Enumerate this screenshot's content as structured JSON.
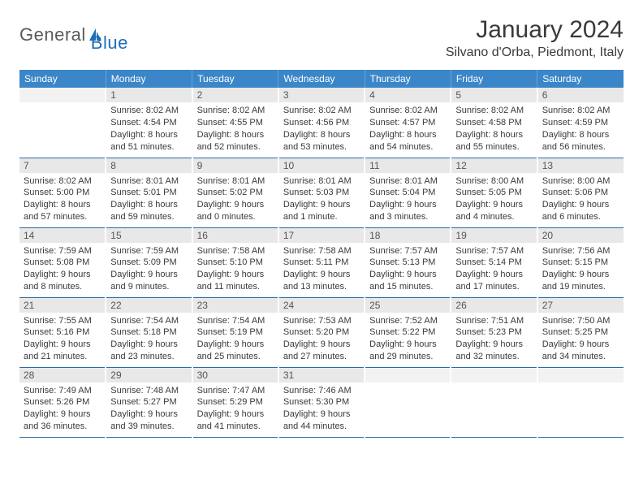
{
  "brand": {
    "general": "General",
    "blue": "Blue"
  },
  "title": "January 2024",
  "location": "Silvano d'Orba, Piedmont, Italy",
  "colors": {
    "header_bg": "#3a86c8",
    "header_text": "#ffffff",
    "daynum_bg": "#e8e8e8",
    "row_border": "#2a6ca8",
    "logo_blue": "#1d6fb8",
    "text": "#3a3a3a"
  },
  "days_of_week": [
    "Sunday",
    "Monday",
    "Tuesday",
    "Wednesday",
    "Thursday",
    "Friday",
    "Saturday"
  ],
  "weeks": [
    [
      null,
      {
        "n": "1",
        "sunrise": "Sunrise: 8:02 AM",
        "sunset": "Sunset: 4:54 PM",
        "daylight1": "Daylight: 8 hours",
        "daylight2": "and 51 minutes."
      },
      {
        "n": "2",
        "sunrise": "Sunrise: 8:02 AM",
        "sunset": "Sunset: 4:55 PM",
        "daylight1": "Daylight: 8 hours",
        "daylight2": "and 52 minutes."
      },
      {
        "n": "3",
        "sunrise": "Sunrise: 8:02 AM",
        "sunset": "Sunset: 4:56 PM",
        "daylight1": "Daylight: 8 hours",
        "daylight2": "and 53 minutes."
      },
      {
        "n": "4",
        "sunrise": "Sunrise: 8:02 AM",
        "sunset": "Sunset: 4:57 PM",
        "daylight1": "Daylight: 8 hours",
        "daylight2": "and 54 minutes."
      },
      {
        "n": "5",
        "sunrise": "Sunrise: 8:02 AM",
        "sunset": "Sunset: 4:58 PM",
        "daylight1": "Daylight: 8 hours",
        "daylight2": "and 55 minutes."
      },
      {
        "n": "6",
        "sunrise": "Sunrise: 8:02 AM",
        "sunset": "Sunset: 4:59 PM",
        "daylight1": "Daylight: 8 hours",
        "daylight2": "and 56 minutes."
      }
    ],
    [
      {
        "n": "7",
        "sunrise": "Sunrise: 8:02 AM",
        "sunset": "Sunset: 5:00 PM",
        "daylight1": "Daylight: 8 hours",
        "daylight2": "and 57 minutes."
      },
      {
        "n": "8",
        "sunrise": "Sunrise: 8:01 AM",
        "sunset": "Sunset: 5:01 PM",
        "daylight1": "Daylight: 8 hours",
        "daylight2": "and 59 minutes."
      },
      {
        "n": "9",
        "sunrise": "Sunrise: 8:01 AM",
        "sunset": "Sunset: 5:02 PM",
        "daylight1": "Daylight: 9 hours",
        "daylight2": "and 0 minutes."
      },
      {
        "n": "10",
        "sunrise": "Sunrise: 8:01 AM",
        "sunset": "Sunset: 5:03 PM",
        "daylight1": "Daylight: 9 hours",
        "daylight2": "and 1 minute."
      },
      {
        "n": "11",
        "sunrise": "Sunrise: 8:01 AM",
        "sunset": "Sunset: 5:04 PM",
        "daylight1": "Daylight: 9 hours",
        "daylight2": "and 3 minutes."
      },
      {
        "n": "12",
        "sunrise": "Sunrise: 8:00 AM",
        "sunset": "Sunset: 5:05 PM",
        "daylight1": "Daylight: 9 hours",
        "daylight2": "and 4 minutes."
      },
      {
        "n": "13",
        "sunrise": "Sunrise: 8:00 AM",
        "sunset": "Sunset: 5:06 PM",
        "daylight1": "Daylight: 9 hours",
        "daylight2": "and 6 minutes."
      }
    ],
    [
      {
        "n": "14",
        "sunrise": "Sunrise: 7:59 AM",
        "sunset": "Sunset: 5:08 PM",
        "daylight1": "Daylight: 9 hours",
        "daylight2": "and 8 minutes."
      },
      {
        "n": "15",
        "sunrise": "Sunrise: 7:59 AM",
        "sunset": "Sunset: 5:09 PM",
        "daylight1": "Daylight: 9 hours",
        "daylight2": "and 9 minutes."
      },
      {
        "n": "16",
        "sunrise": "Sunrise: 7:58 AM",
        "sunset": "Sunset: 5:10 PM",
        "daylight1": "Daylight: 9 hours",
        "daylight2": "and 11 minutes."
      },
      {
        "n": "17",
        "sunrise": "Sunrise: 7:58 AM",
        "sunset": "Sunset: 5:11 PM",
        "daylight1": "Daylight: 9 hours",
        "daylight2": "and 13 minutes."
      },
      {
        "n": "18",
        "sunrise": "Sunrise: 7:57 AM",
        "sunset": "Sunset: 5:13 PM",
        "daylight1": "Daylight: 9 hours",
        "daylight2": "and 15 minutes."
      },
      {
        "n": "19",
        "sunrise": "Sunrise: 7:57 AM",
        "sunset": "Sunset: 5:14 PM",
        "daylight1": "Daylight: 9 hours",
        "daylight2": "and 17 minutes."
      },
      {
        "n": "20",
        "sunrise": "Sunrise: 7:56 AM",
        "sunset": "Sunset: 5:15 PM",
        "daylight1": "Daylight: 9 hours",
        "daylight2": "and 19 minutes."
      }
    ],
    [
      {
        "n": "21",
        "sunrise": "Sunrise: 7:55 AM",
        "sunset": "Sunset: 5:16 PM",
        "daylight1": "Daylight: 9 hours",
        "daylight2": "and 21 minutes."
      },
      {
        "n": "22",
        "sunrise": "Sunrise: 7:54 AM",
        "sunset": "Sunset: 5:18 PM",
        "daylight1": "Daylight: 9 hours",
        "daylight2": "and 23 minutes."
      },
      {
        "n": "23",
        "sunrise": "Sunrise: 7:54 AM",
        "sunset": "Sunset: 5:19 PM",
        "daylight1": "Daylight: 9 hours",
        "daylight2": "and 25 minutes."
      },
      {
        "n": "24",
        "sunrise": "Sunrise: 7:53 AM",
        "sunset": "Sunset: 5:20 PM",
        "daylight1": "Daylight: 9 hours",
        "daylight2": "and 27 minutes."
      },
      {
        "n": "25",
        "sunrise": "Sunrise: 7:52 AM",
        "sunset": "Sunset: 5:22 PM",
        "daylight1": "Daylight: 9 hours",
        "daylight2": "and 29 minutes."
      },
      {
        "n": "26",
        "sunrise": "Sunrise: 7:51 AM",
        "sunset": "Sunset: 5:23 PM",
        "daylight1": "Daylight: 9 hours",
        "daylight2": "and 32 minutes."
      },
      {
        "n": "27",
        "sunrise": "Sunrise: 7:50 AM",
        "sunset": "Sunset: 5:25 PM",
        "daylight1": "Daylight: 9 hours",
        "daylight2": "and 34 minutes."
      }
    ],
    [
      {
        "n": "28",
        "sunrise": "Sunrise: 7:49 AM",
        "sunset": "Sunset: 5:26 PM",
        "daylight1": "Daylight: 9 hours",
        "daylight2": "and 36 minutes."
      },
      {
        "n": "29",
        "sunrise": "Sunrise: 7:48 AM",
        "sunset": "Sunset: 5:27 PM",
        "daylight1": "Daylight: 9 hours",
        "daylight2": "and 39 minutes."
      },
      {
        "n": "30",
        "sunrise": "Sunrise: 7:47 AM",
        "sunset": "Sunset: 5:29 PM",
        "daylight1": "Daylight: 9 hours",
        "daylight2": "and 41 minutes."
      },
      {
        "n": "31",
        "sunrise": "Sunrise: 7:46 AM",
        "sunset": "Sunset: 5:30 PM",
        "daylight1": "Daylight: 9 hours",
        "daylight2": "and 44 minutes."
      },
      null,
      null,
      null
    ]
  ]
}
